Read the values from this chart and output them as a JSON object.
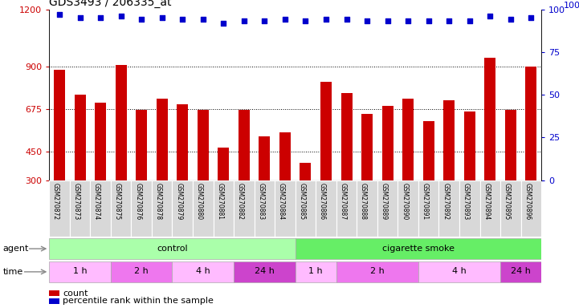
{
  "title": "GDS3493 / 206335_at",
  "samples": [
    "GSM270872",
    "GSM270873",
    "GSM270874",
    "GSM270875",
    "GSM270876",
    "GSM270878",
    "GSM270879",
    "GSM270880",
    "GSM270881",
    "GSM270882",
    "GSM270883",
    "GSM270884",
    "GSM270885",
    "GSM270886",
    "GSM270887",
    "GSM270888",
    "GSM270889",
    "GSM270890",
    "GSM270891",
    "GSM270892",
    "GSM270893",
    "GSM270894",
    "GSM270895",
    "GSM270896"
  ],
  "bar_values": [
    880,
    750,
    710,
    905,
    670,
    730,
    700,
    670,
    470,
    670,
    530,
    550,
    390,
    820,
    760,
    650,
    690,
    730,
    610,
    720,
    660,
    945,
    670,
    900
  ],
  "percentile_values": [
    97,
    95,
    95,
    96,
    94,
    95,
    94,
    94,
    92,
    93,
    93,
    94,
    93,
    94,
    94,
    93,
    93,
    93,
    93,
    93,
    93,
    96,
    94,
    95
  ],
  "bar_color": "#cc0000",
  "dot_color": "#0000cc",
  "ylim_left": [
    300,
    1200
  ],
  "ylim_right": [
    0,
    100
  ],
  "yticks_left": [
    300,
    450,
    675,
    900,
    1200
  ],
  "yticks_right": [
    0,
    25,
    50,
    75,
    100
  ],
  "grid_values": [
    450,
    675,
    900
  ],
  "agent_groups": [
    {
      "label": "control",
      "start": 0,
      "end": 11,
      "color": "#aaffaa"
    },
    {
      "label": "cigarette smoke",
      "start": 12,
      "end": 23,
      "color": "#66ee66"
    }
  ],
  "time_groups": [
    {
      "label": "1 h",
      "start": 0,
      "end": 2,
      "color": "#ffbbff"
    },
    {
      "label": "2 h",
      "start": 3,
      "end": 5,
      "color": "#ee77ee"
    },
    {
      "label": "4 h",
      "start": 6,
      "end": 8,
      "color": "#ffbbff"
    },
    {
      "label": "24 h",
      "start": 9,
      "end": 11,
      "color": "#cc44cc"
    },
    {
      "label": "1 h",
      "start": 12,
      "end": 13,
      "color": "#ffbbff"
    },
    {
      "label": "2 h",
      "start": 14,
      "end": 17,
      "color": "#ee77ee"
    },
    {
      "label": "4 h",
      "start": 18,
      "end": 21,
      "color": "#ffbbff"
    },
    {
      "label": "24 h",
      "start": 22,
      "end": 23,
      "color": "#cc44cc"
    }
  ],
  "legend_count_color": "#cc0000",
  "legend_pct_color": "#0000cc",
  "right_axis_label_color": "#0000cc",
  "left_axis_label_color": "#cc0000",
  "background_color": "#ffffff",
  "tick_label_bg": "#e0e0e0"
}
